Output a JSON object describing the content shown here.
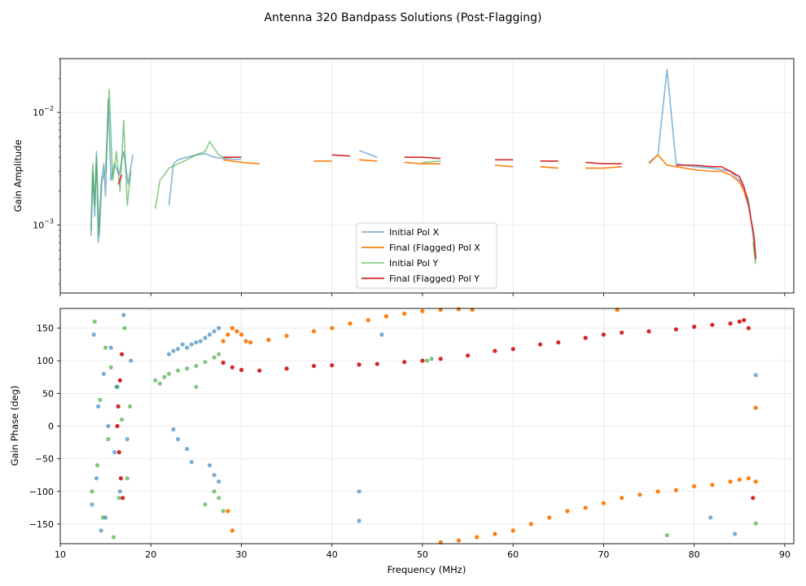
{
  "figure": {
    "title": "Antenna 320 Bandpass Solutions (Post-Flagging)"
  },
  "colors": {
    "initial_x": "#1f77b4",
    "final_x": "#ff7f0e",
    "initial_y": "#2ca02c",
    "final_y": "#d62728",
    "grid": "#e6e6e6"
  },
  "chart_data": [
    {
      "type": "line",
      "title": "",
      "xlabel": "",
      "ylabel": "Gain Amplitude",
      "yscale": "log",
      "ylim": [
        0.00025,
        0.03
      ],
      "xlim": [
        10,
        91
      ],
      "yticks": [
        {
          "value": 0.001,
          "base": "10",
          "exp": "−3"
        },
        {
          "value": 0.01,
          "base": "10",
          "exp": "−2"
        }
      ],
      "grid": true,
      "legend": {
        "position": "lower center",
        "entries": [
          "Initial Pol X",
          "Final (Flagged) Pol X",
          "Initial Pol Y",
          "Final (Flagged) Pol Y"
        ]
      },
      "series": [
        {
          "name": "Initial Pol X",
          "x": [
            13.4,
            13.6,
            13.8,
            14.0,
            14.2,
            14.5,
            14.8,
            15.0,
            15.3,
            15.6,
            16.0,
            16.5,
            17.0,
            17.5,
            18.0,
            22.0,
            22.5,
            23.0,
            24.0,
            25.0,
            26.0,
            27.0,
            28.0,
            30.0,
            35.0,
            40.0,
            43.0,
            45.0,
            50.0,
            55.0,
            60.0,
            65.0,
            70.0,
            75.0,
            76.0,
            77.0,
            78.0,
            80.0,
            82.0,
            84.0,
            85.0,
            86.0,
            86.5,
            86.8
          ],
          "y": [
            0.0008,
            0.003,
            0.0012,
            0.0045,
            0.0007,
            0.0022,
            0.0035,
            0.0018,
            0.013,
            0.0025,
            0.0035,
            0.0028,
            0.0045,
            0.0023,
            0.0042,
            0.0015,
            0.0035,
            0.0038,
            0.004,
            0.0042,
            0.0043,
            0.004,
            0.0039,
            0.0038,
            0.0039,
            0.0041,
            0.0046,
            0.004,
            0.0037,
            0.0036,
            0.0035,
            0.0034,
            0.0033,
            0.0036,
            0.0042,
            0.024,
            0.0035,
            0.0033,
            0.0032,
            0.003,
            0.0025,
            0.0017,
            0.0008,
            0.0005
          ]
        },
        {
          "name": "Final (Flagged) Pol X",
          "x": [
            28.0,
            29.0,
            30.0,
            32.0,
            35.0,
            38.0,
            40.0,
            43.0,
            45.0,
            48.0,
            50.0,
            52.0,
            55.0,
            58.0,
            60.0,
            63.0,
            65.0,
            68.0,
            70.0,
            72.0,
            75.0,
            76.0,
            77.0,
            78.0,
            80.0,
            82.0,
            83.0,
            84.0,
            85.0,
            85.5,
            86.0,
            86.3,
            86.6,
            86.8
          ],
          "y": [
            0.0038,
            0.0037,
            0.0036,
            0.0035,
            0.0036,
            0.0037,
            0.0037,
            0.0038,
            0.0037,
            0.0036,
            0.0035,
            0.0035,
            0.0034,
            0.0034,
            0.0033,
            0.0033,
            0.0032,
            0.0032,
            0.0032,
            0.0033,
            0.0035,
            0.0042,
            0.0034,
            0.0033,
            0.0031,
            0.003,
            0.003,
            0.0028,
            0.0024,
            0.002,
            0.0015,
            0.0011,
            0.0008,
            0.0005
          ]
        },
        {
          "name": "Initial Pol Y",
          "x": [
            13.4,
            13.6,
            13.8,
            14.0,
            14.3,
            14.6,
            15.0,
            15.4,
            15.8,
            16.2,
            16.6,
            17.0,
            17.4,
            17.8,
            20.5,
            21.0,
            21.5,
            22.0,
            23.0,
            24.0,
            25.0,
            26.0,
            26.5,
            27.0,
            27.5,
            28.0,
            50.0,
            52.0,
            77.0,
            86.5,
            86.8
          ],
          "y": [
            0.0009,
            0.0035,
            0.0015,
            0.004,
            0.0008,
            0.0025,
            0.003,
            0.016,
            0.0025,
            0.0045,
            0.002,
            0.0085,
            0.0015,
            0.003,
            0.0014,
            0.0025,
            0.0028,
            0.0032,
            0.0035,
            0.0038,
            0.0042,
            0.0045,
            0.0055,
            0.0048,
            0.0042,
            0.004,
            0.0036,
            0.0037,
            0.0095,
            0.0007,
            0.00045
          ]
        },
        {
          "name": "Final (Flagged) Pol Y",
          "x": [
            16.4,
            16.8,
            28.0,
            30.0,
            35.0,
            40.0,
            42.0,
            45.0,
            48.0,
            50.0,
            52.0,
            55.0,
            58.0,
            60.0,
            63.0,
            65.0,
            68.0,
            70.0,
            72.0,
            75.0,
            78.0,
            80.0,
            82.0,
            83.0,
            84.0,
            85.0,
            85.5,
            86.0,
            86.3,
            86.6,
            86.8
          ],
          "y": [
            0.0023,
            0.0028,
            0.004,
            0.004,
            0.0041,
            0.0042,
            0.0041,
            0.0042,
            0.004,
            0.004,
            0.0039,
            0.0039,
            0.0038,
            0.0038,
            0.0037,
            0.0037,
            0.0036,
            0.0035,
            0.0035,
            0.0035,
            0.0034,
            0.0034,
            0.0033,
            0.0033,
            0.003,
            0.0027,
            0.0022,
            0.0015,
            0.0011,
            0.0008,
            0.0005
          ]
        }
      ]
    },
    {
      "type": "scatter",
      "title": "",
      "xlabel": "Frequency (MHz)",
      "ylabel": "Gain Phase (deg)",
      "xlim": [
        10,
        91
      ],
      "ylim": [
        -180,
        180
      ],
      "xticks": [
        10,
        20,
        30,
        40,
        50,
        60,
        70,
        80,
        90
      ],
      "yticks": [
        -150,
        -100,
        -50,
        0,
        50,
        100,
        150
      ],
      "grid": true,
      "series": [
        {
          "name": "Initial Pol X",
          "x": [
            13.5,
            13.7,
            14.0,
            14.2,
            14.5,
            14.8,
            15.0,
            15.3,
            15.6,
            16.0,
            16.3,
            16.6,
            17.0,
            17.4,
            17.8,
            22.0,
            22.5,
            23.0,
            23.5,
            24.0,
            24.5,
            25.0,
            25.5,
            26.0,
            26.5,
            27.0,
            27.5,
            22.5,
            23.0,
            24.0,
            24.5,
            26.5,
            27.0,
            27.5,
            43.0,
            43.0,
            45.5,
            81.8,
            84.5,
            86.8
          ],
          "y": [
            -120,
            140,
            -80,
            30,
            -160,
            80,
            -140,
            0,
            120,
            -40,
            60,
            -100,
            170,
            -20,
            100,
            110,
            115,
            118,
            125,
            120,
            125,
            128,
            130,
            135,
            140,
            145,
            150,
            -5,
            -20,
            -35,
            -55,
            -60,
            -75,
            -85,
            -100,
            -145,
            140,
            -140,
            -165,
            78
          ]
        },
        {
          "name": "Final (Flagged) Pol X",
          "x": [
            28.0,
            28.5,
            29.0,
            29.5,
            30.0,
            30.5,
            31.0,
            33.0,
            35.0,
            38.0,
            40.0,
            42.0,
            44.0,
            46.0,
            48.0,
            50.0,
            52.0,
            54.0,
            55.5,
            28.5,
            29.0,
            52.0,
            54.0,
            56.0,
            58.0,
            60.0,
            62.0,
            64.0,
            66.0,
            68.0,
            70.0,
            72.0,
            74.0,
            76.0,
            78.0,
            80.0,
            82.0,
            84.0,
            85.0,
            86.0,
            86.8,
            86.8,
            71.5
          ],
          "y": [
            130,
            140,
            150,
            145,
            140,
            130,
            128,
            132,
            138,
            145,
            150,
            157,
            162,
            168,
            172,
            176,
            178,
            179,
            178,
            -130,
            -160,
            -178,
            -175,
            -170,
            -165,
            -160,
            -150,
            -140,
            -130,
            -125,
            -118,
            -110,
            -105,
            -100,
            -98,
            -92,
            -90,
            -85,
            -82,
            -80,
            -85,
            28,
            178
          ]
        },
        {
          "name": "Initial Pol Y",
          "x": [
            13.5,
            13.8,
            14.1,
            14.4,
            14.7,
            15.0,
            15.3,
            15.6,
            15.9,
            16.2,
            16.5,
            16.8,
            17.1,
            17.4,
            17.7,
            20.5,
            21.0,
            21.5,
            22.0,
            23.0,
            24.0,
            25.0,
            26.0,
            27.0,
            27.5,
            25.0,
            26.0,
            27.0,
            27.5,
            28.0,
            50.5,
            51.0,
            77.0,
            86.8
          ],
          "y": [
            -100,
            160,
            -60,
            40,
            -140,
            120,
            -20,
            90,
            -170,
            60,
            -110,
            10,
            150,
            -80,
            30,
            70,
            65,
            75,
            80,
            85,
            88,
            92,
            98,
            105,
            110,
            60,
            -120,
            -100,
            -110,
            -130,
            100,
            103,
            -167,
            -149
          ]
        },
        {
          "name": "Final (Flagged) Pol Y",
          "x": [
            16.3,
            16.4,
            16.5,
            16.6,
            16.7,
            16.8,
            16.9,
            28.0,
            29.0,
            30.0,
            32.0,
            35.0,
            38.0,
            40.0,
            43.0,
            45.0,
            48.0,
            50.0,
            52.0,
            55.0,
            58.0,
            60.0,
            63.0,
            65.0,
            68.0,
            70.0,
            72.0,
            75.0,
            78.0,
            80.0,
            82.0,
            84.0,
            85.0,
            85.5,
            86.0,
            86.5
          ],
          "y": [
            0,
            30,
            -40,
            70,
            -80,
            110,
            -110,
            97,
            90,
            86,
            85,
            88,
            92,
            93,
            94,
            95,
            98,
            100,
            103,
            108,
            115,
            118,
            125,
            128,
            135,
            140,
            143,
            145,
            148,
            152,
            155,
            157,
            160,
            162,
            150,
            -110
          ]
        }
      ]
    }
  ]
}
